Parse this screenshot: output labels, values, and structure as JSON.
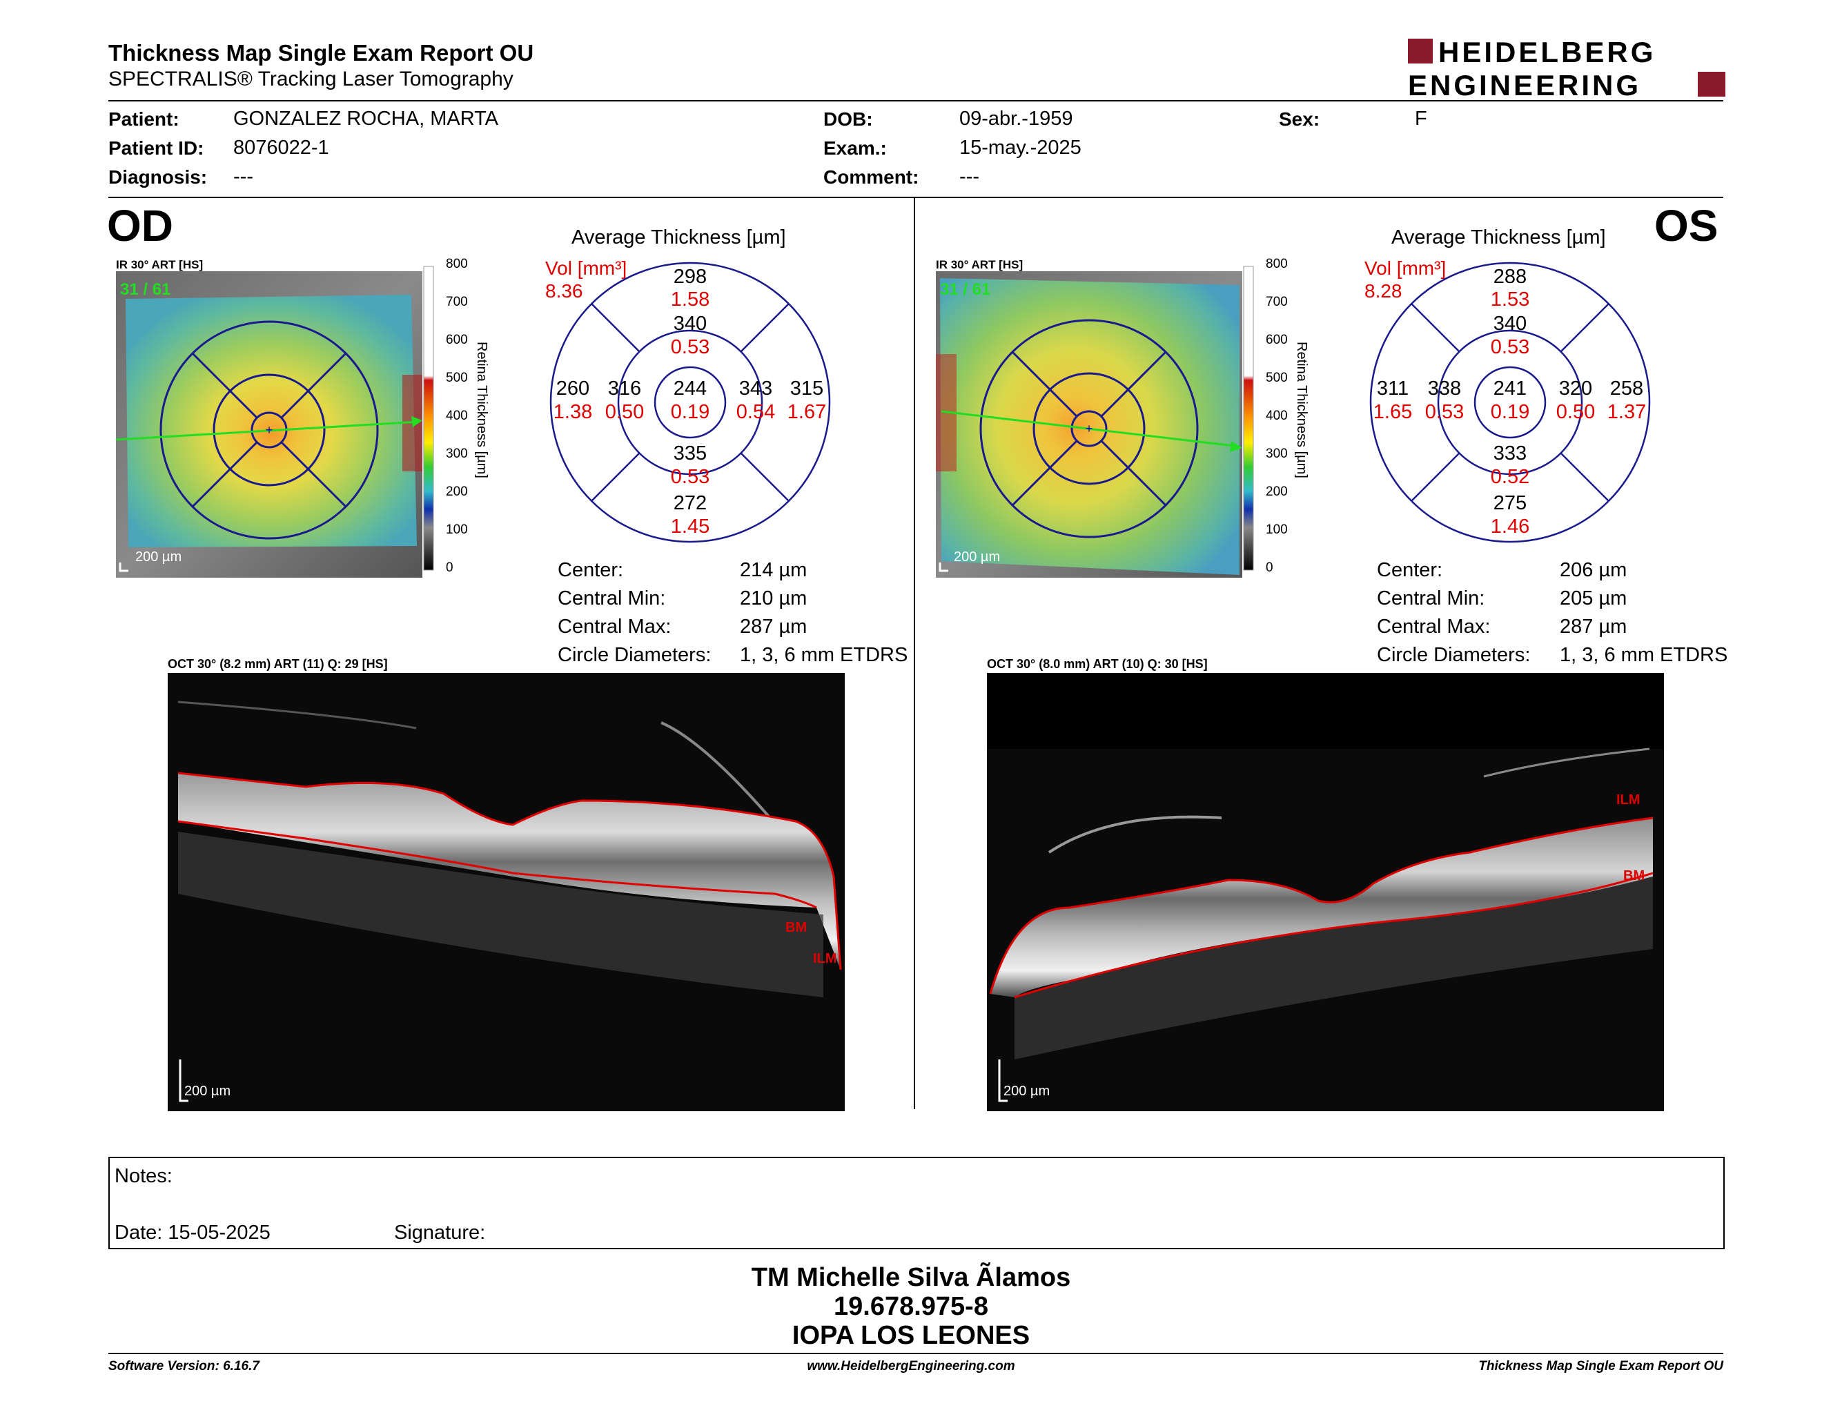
{
  "header": {
    "title": "Thickness Map Single Exam Report OU",
    "subtitle": "SPECTRALIS® Tracking Laser Tomography",
    "logo_line1": "HEIDELBERG",
    "logo_line2": "ENGINEERING",
    "brand_color": "#8b1a2b"
  },
  "patient": {
    "name_label": "Patient:",
    "name": "GONZALEZ ROCHA, MARTA",
    "id_label": "Patient ID:",
    "id": "8076022-1",
    "diag_label": "Diagnosis:",
    "diag": "---",
    "dob_label": "DOB:",
    "dob": "09-abr.-1959",
    "exam_label": "Exam.:",
    "exam": "15-may.-2025",
    "comment_label": "Comment:",
    "comment": "---",
    "sex_label": "Sex:",
    "sex": "F"
  },
  "od": {
    "eye": "OD",
    "ir_label": "IR 30° ART [HS]",
    "frame": "31 / 61",
    "scale": "200 µm",
    "colorbar_title": "Retina Thickness [µm]",
    "ticks": [
      "800",
      "700",
      "600",
      "500",
      "400",
      "300",
      "200",
      "100",
      "0"
    ],
    "avg_title": "Average Thickness [µm]",
    "vol_label": "Vol [mm³]",
    "vol_total": "8.36",
    "etdrs": {
      "center": [
        "244",
        "0.19"
      ],
      "inner_top": [
        "340",
        "0.53"
      ],
      "inner_bottom": [
        "335",
        "0.53"
      ],
      "inner_left": [
        "316",
        "0.50"
      ],
      "inner_right": [
        "343",
        "0.54"
      ],
      "outer_top": [
        "298",
        "1.58"
      ],
      "outer_bottom": [
        "272",
        "1.45"
      ],
      "outer_left": [
        "260",
        "1.38"
      ],
      "outer_right": [
        "315",
        "1.67"
      ]
    },
    "stats": [
      {
        "label": "Center:",
        "value": "214 µm"
      },
      {
        "label": "Central Min:",
        "value": "210 µm"
      },
      {
        "label": "Central Max:",
        "value": "287 µm"
      },
      {
        "label": "Circle Diameters:",
        "value": "1, 3, 6 mm ETDRS"
      }
    ],
    "oct_label": "OCT 30° (8.2 mm) ART (11) Q: 29 [HS]",
    "oct_scale": "200 µm",
    "oct_ilm": "ILM",
    "oct_bm": "BM"
  },
  "os": {
    "eye": "OS",
    "ir_label": "IR 30° ART [HS]",
    "frame": "31 / 61",
    "scale": "200 µm",
    "colorbar_title": "Retina Thickness [µm]",
    "ticks": [
      "800",
      "700",
      "600",
      "500",
      "400",
      "300",
      "200",
      "100",
      "0"
    ],
    "avg_title": "Average Thickness [µm]",
    "vol_label": "Vol [mm³]",
    "vol_total": "8.28",
    "etdrs": {
      "center": [
        "241",
        "0.19"
      ],
      "inner_top": [
        "340",
        "0.53"
      ],
      "inner_bottom": [
        "333",
        "0.52"
      ],
      "inner_left": [
        "338",
        "0.53"
      ],
      "inner_right": [
        "320",
        "0.50"
      ],
      "outer_top": [
        "288",
        "1.53"
      ],
      "outer_bottom": [
        "275",
        "1.46"
      ],
      "outer_left": [
        "311",
        "1.65"
      ],
      "outer_right": [
        "258",
        "1.37"
      ]
    },
    "stats": [
      {
        "label": "Center:",
        "value": "206 µm"
      },
      {
        "label": "Central Min:",
        "value": "205 µm"
      },
      {
        "label": "Central Max:",
        "value": "287 µm"
      },
      {
        "label": "Circle Diameters:",
        "value": "1, 3, 6 mm ETDRS"
      }
    ],
    "oct_label": "OCT 30° (8.0 mm) ART (10) Q: 30 [HS]",
    "oct_scale": "200 µm",
    "oct_ilm": "ILM",
    "oct_bm": "BM"
  },
  "notes": {
    "notes_label": "Notes:",
    "date_label": "Date: 15-05-2025",
    "signature_label": "Signature:"
  },
  "signoff": {
    "line1": "TM Michelle Silva Ãlamos",
    "line2": "19.678.975-8",
    "line3": "IOPA LOS LEONES"
  },
  "footer": {
    "left": "Software Version: 6.16.7",
    "center": "www.HeidelbergEngineering.com",
    "right": "Thickness Map Single Exam Report OU"
  }
}
